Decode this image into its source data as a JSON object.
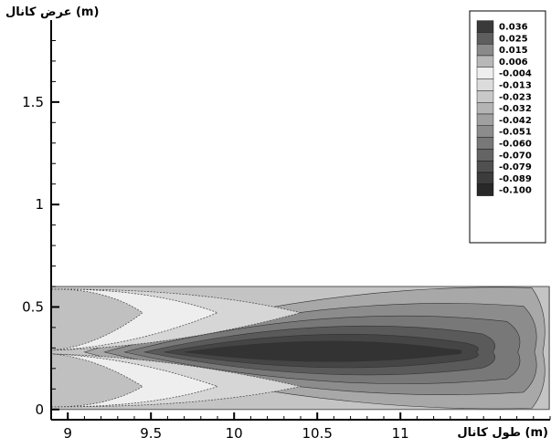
{
  "chart_data": {
    "type": "heatmap",
    "title": "",
    "xlabel": "طول کانال (m)",
    "ylabel": "عرض کانال (m)",
    "xlim": [
      8.9,
      11.9
    ],
    "ylim": [
      -0.05,
      1.9
    ],
    "x_ticks": [
      9,
      9.5,
      10,
      10.5,
      11
    ],
    "x_tick_labels": [
      "9",
      "9.5",
      "10",
      "10.5",
      "11"
    ],
    "y_ticks": [
      0,
      0.5,
      1,
      1.5
    ],
    "y_tick_labels": [
      "0",
      "0.5",
      "1",
      "1.5"
    ],
    "grid": false,
    "legend": {
      "position": "top-right",
      "levels": [
        0.036,
        0.025,
        0.015,
        0.006,
        -0.004,
        -0.013,
        -0.023,
        -0.032,
        -0.042,
        -0.051,
        -0.06,
        -0.07,
        -0.079,
        -0.089,
        -0.1
      ],
      "level_labels": [
        "0.036",
        "0.025",
        "0.015",
        "0.006",
        "-0.004",
        "-0.013",
        "-0.023",
        "-0.032",
        "-0.042",
        "-0.051",
        "-0.060",
        "-0.070",
        "-0.079",
        "-0.089",
        "-0.100"
      ],
      "colors": [
        "#3a3a3a",
        "#5e5e5e",
        "#8a8a8a",
        "#b8b8b8",
        "#eeeeee",
        "#dcdcdc",
        "#c8c8c8",
        "#b4b4b4",
        "#a0a0a0",
        "#8c8c8c",
        "#787878",
        "#646464",
        "#505050",
        "#3c3c3c",
        "#282828"
      ]
    },
    "field": {
      "channel_y_range": [
        0,
        0.6
      ],
      "centerline_y": 0.28,
      "contour_bands": [
        {
          "color": "#a8a8a8",
          "tip_x": 11.9
        },
        {
          "color": "#8c8c8c",
          "tip_x": 11.85
        },
        {
          "color": "#787878",
          "tip_x": 11.75
        },
        {
          "color": "#5a5a5a",
          "tip_x": 11.6
        },
        {
          "color": "#454545",
          "tip_x": 11.5
        },
        {
          "color": "#333333",
          "tip_x": 11.4
        }
      ],
      "light_lobes": [
        {
          "color": "#d6d6d6",
          "tip_x": 10.4
        },
        {
          "color": "#eeeeee",
          "tip_x": 9.9
        },
        {
          "color": "#c0c0c0",
          "tip_x": 9.45
        }
      ]
    }
  }
}
